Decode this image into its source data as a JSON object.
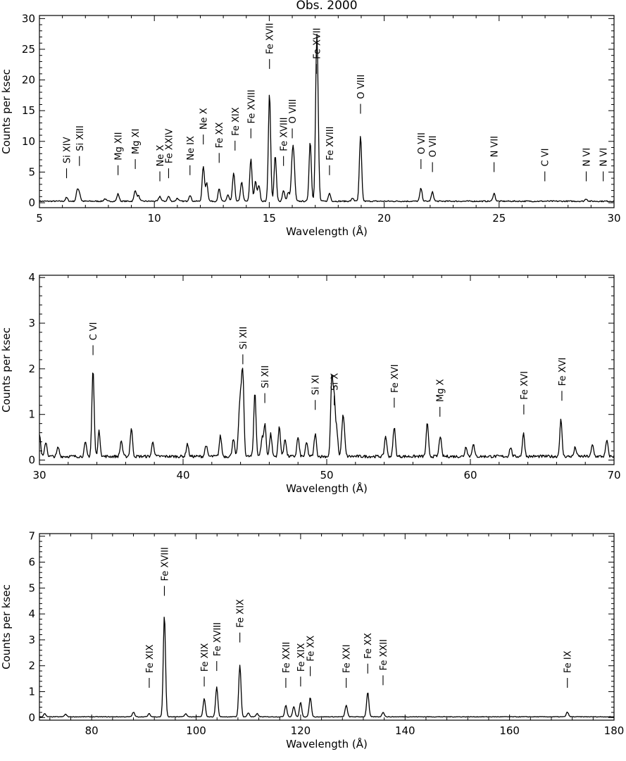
{
  "figure_title": "Obs. 2000",
  "chart_data": [
    {
      "type": "line",
      "xlabel": "Wavelength (Å)",
      "ylabel": "Counts per ksec",
      "xlim": [
        5,
        30
      ],
      "ylim": [
        -0.8,
        30.5
      ],
      "xticks": [
        5,
        10,
        15,
        20,
        25,
        30
      ],
      "yticks": [
        0,
        5,
        10,
        15,
        20,
        25,
        30
      ],
      "baseline": 0.25,
      "peaks": [
        {
          "x": 6.18,
          "y": 0.6
        },
        {
          "x": 6.65,
          "y": 1.8
        },
        {
          "x": 6.74,
          "y": 1.2
        },
        {
          "x": 7.85,
          "y": 0.4
        },
        {
          "x": 8.42,
          "y": 1.2
        },
        {
          "x": 9.17,
          "y": 1.8
        },
        {
          "x": 9.31,
          "y": 0.9
        },
        {
          "x": 10.24,
          "y": 0.8
        },
        {
          "x": 10.62,
          "y": 0.8
        },
        {
          "x": 11.0,
          "y": 0.5
        },
        {
          "x": 11.55,
          "y": 1.0
        },
        {
          "x": 12.13,
          "y": 5.7
        },
        {
          "x": 12.28,
          "y": 3.0
        },
        {
          "x": 12.82,
          "y": 2.0
        },
        {
          "x": 13.2,
          "y": 1.0
        },
        {
          "x": 13.45,
          "y": 4.6
        },
        {
          "x": 13.8,
          "y": 3.2
        },
        {
          "x": 14.2,
          "y": 6.9
        },
        {
          "x": 14.4,
          "y": 3.2
        },
        {
          "x": 14.55,
          "y": 2.6
        },
        {
          "x": 15.01,
          "y": 17.6
        },
        {
          "x": 15.26,
          "y": 7.4
        },
        {
          "x": 15.62,
          "y": 1.8
        },
        {
          "x": 15.83,
          "y": 1.5
        },
        {
          "x": 16.0,
          "y": 6.0
        },
        {
          "x": 16.07,
          "y": 5.7
        },
        {
          "x": 16.78,
          "y": 9.7
        },
        {
          "x": 17.05,
          "y": 17.0
        },
        {
          "x": 17.1,
          "y": 14.0
        },
        {
          "x": 17.62,
          "y": 1.3
        },
        {
          "x": 18.63,
          "y": 0.5
        },
        {
          "x": 18.97,
          "y": 10.6
        },
        {
          "x": 21.6,
          "y": 2.1
        },
        {
          "x": 22.1,
          "y": 1.5
        },
        {
          "x": 24.78,
          "y": 1.3
        },
        {
          "x": 28.79,
          "y": 0.4
        }
      ],
      "labels": [
        {
          "text": "Si XIV",
          "x": 6.18,
          "y": 4.0
        },
        {
          "text": "Si XIII",
          "x": 6.74,
          "y": 6.0
        },
        {
          "text": "Mg XII",
          "x": 8.42,
          "y": 4.5
        },
        {
          "text": "Mg XI",
          "x": 9.17,
          "y": 5.5
        },
        {
          "text": "Ne X",
          "x": 10.24,
          "y": 3.5
        },
        {
          "text": "Fe XXIV",
          "x": 10.62,
          "y": 4.0
        },
        {
          "text": "Ne IX",
          "x": 11.55,
          "y": 4.5
        },
        {
          "text": "Ne X",
          "x": 12.13,
          "y": 9.5
        },
        {
          "text": "Fe XX",
          "x": 12.82,
          "y": 6.5
        },
        {
          "text": "Fe XIX",
          "x": 13.51,
          "y": 8.5
        },
        {
          "text": "Fe XVIII",
          "x": 14.2,
          "y": 10.5
        },
        {
          "text": "Fe XVII",
          "x": 15.01,
          "y": 21.8
        },
        {
          "text": "Fe XVIII",
          "x": 15.62,
          "y": 6.0
        },
        {
          "text": "O VIII",
          "x": 16.0,
          "y": 10.5
        },
        {
          "text": "Fe XVII",
          "x": 17.05,
          "y": 21.0
        },
        {
          "text": "Fe XVIII",
          "x": 17.62,
          "y": 4.5
        },
        {
          "text": "O VIII",
          "x": 18.97,
          "y": 14.5
        },
        {
          "text": "O VII",
          "x": 21.6,
          "y": 5.5
        },
        {
          "text": "O VII",
          "x": 22.1,
          "y": 5.0
        },
        {
          "text": "N VII",
          "x": 24.78,
          "y": 5.0
        },
        {
          "text": "C VI",
          "x": 26.99,
          "y": 3.5
        },
        {
          "text": "N VI",
          "x": 28.79,
          "y": 3.5
        },
        {
          "text": "N VI",
          "x": 29.53,
          "y": 3.5
        }
      ]
    },
    {
      "type": "line",
      "xlabel": "Wavelength (Å)",
      "ylabel": "Counts per ksec",
      "xlim": [
        30,
        70
      ],
      "ylim": [
        -0.1,
        4.05
      ],
      "xticks": [
        30,
        40,
        50,
        60,
        70
      ],
      "yticks": [
        0,
        1,
        2,
        3,
        4
      ],
      "baseline": 0.08,
      "peaks": [
        {
          "x": 30.0,
          "y": 0.5
        },
        {
          "x": 30.45,
          "y": 0.32
        },
        {
          "x": 31.3,
          "y": 0.2
        },
        {
          "x": 33.2,
          "y": 0.3
        },
        {
          "x": 33.73,
          "y": 1.9
        },
        {
          "x": 34.15,
          "y": 0.55
        },
        {
          "x": 35.7,
          "y": 0.35
        },
        {
          "x": 36.4,
          "y": 0.62
        },
        {
          "x": 37.9,
          "y": 0.33
        },
        {
          "x": 40.3,
          "y": 0.28
        },
        {
          "x": 41.6,
          "y": 0.25
        },
        {
          "x": 42.6,
          "y": 0.45
        },
        {
          "x": 43.5,
          "y": 0.4
        },
        {
          "x": 43.9,
          "y": 0.7
        },
        {
          "x": 44.02,
          "y": 0.95
        },
        {
          "x": 44.16,
          "y": 1.72
        },
        {
          "x": 45.0,
          "y": 1.42
        },
        {
          "x": 45.5,
          "y": 0.4
        },
        {
          "x": 45.7,
          "y": 0.7
        },
        {
          "x": 46.1,
          "y": 0.5
        },
        {
          "x": 46.7,
          "y": 0.65
        },
        {
          "x": 47.1,
          "y": 0.4
        },
        {
          "x": 48.0,
          "y": 0.42
        },
        {
          "x": 48.6,
          "y": 0.3
        },
        {
          "x": 49.2,
          "y": 0.5
        },
        {
          "x": 50.35,
          "y": 1.68
        },
        {
          "x": 50.52,
          "y": 1.2
        },
        {
          "x": 50.7,
          "y": 0.55
        },
        {
          "x": 51.1,
          "y": 0.6
        },
        {
          "x": 51.2,
          "y": 0.5
        },
        {
          "x": 54.1,
          "y": 0.45
        },
        {
          "x": 54.7,
          "y": 0.65
        },
        {
          "x": 57.0,
          "y": 0.72
        },
        {
          "x": 57.9,
          "y": 0.45
        },
        {
          "x": 59.7,
          "y": 0.22
        },
        {
          "x": 60.2,
          "y": 0.28
        },
        {
          "x": 62.8,
          "y": 0.2
        },
        {
          "x": 63.7,
          "y": 0.5
        },
        {
          "x": 66.3,
          "y": 0.8
        },
        {
          "x": 67.3,
          "y": 0.2
        },
        {
          "x": 68.5,
          "y": 0.25
        },
        {
          "x": 69.5,
          "y": 0.35
        }
      ],
      "labels": [
        {
          "text": "C VI",
          "x": 33.73,
          "y": 2.3
        },
        {
          "text": "Si XII",
          "x": 44.16,
          "y": 2.1
        },
        {
          "text": "Si XII",
          "x": 45.69,
          "y": 1.25
        },
        {
          "text": "Si XI",
          "x": 49.2,
          "y": 1.1
        },
        {
          "text": "Si X",
          "x": 50.52,
          "y": 1.2
        },
        {
          "text": "Fe XVI",
          "x": 54.7,
          "y": 1.15
        },
        {
          "text": "Mg X",
          "x": 57.88,
          "y": 0.95
        },
        {
          "text": "Fe XVI",
          "x": 63.72,
          "y": 1.0
        },
        {
          "text": "Fe XVI",
          "x": 66.37,
          "y": 1.3
        }
      ]
    },
    {
      "type": "line",
      "xlabel": "Wavelength (Å)",
      "ylabel": "Counts per ksec",
      "xlim": [
        70,
        180
      ],
      "ylim": [
        -0.1,
        7.1
      ],
      "xticks": [
        80,
        100,
        120,
        140,
        160,
        180
      ],
      "yticks": [
        0,
        1,
        2,
        3,
        4,
        5,
        6,
        7
      ],
      "baseline": 0.03,
      "peaks": [
        {
          "x": 71.0,
          "y": 0.12
        },
        {
          "x": 75.0,
          "y": 0.1
        },
        {
          "x": 88.0,
          "y": 0.18
        },
        {
          "x": 91.0,
          "y": 0.12
        },
        {
          "x": 93.92,
          "y": 3.92
        },
        {
          "x": 98.0,
          "y": 0.12
        },
        {
          "x": 101.55,
          "y": 0.7
        },
        {
          "x": 103.94,
          "y": 1.15
        },
        {
          "x": 108.37,
          "y": 2.0
        },
        {
          "x": 110.0,
          "y": 0.15
        },
        {
          "x": 111.7,
          "y": 0.12
        },
        {
          "x": 117.17,
          "y": 0.45
        },
        {
          "x": 118.7,
          "y": 0.4
        },
        {
          "x": 120.0,
          "y": 0.55
        },
        {
          "x": 121.85,
          "y": 0.75
        },
        {
          "x": 128.73,
          "y": 0.45
        },
        {
          "x": 132.85,
          "y": 0.95
        },
        {
          "x": 135.8,
          "y": 0.18
        },
        {
          "x": 171.07,
          "y": 0.18
        }
      ],
      "labels": [
        {
          "text": "Fe XIX",
          "x": 91.02,
          "y": 1.15
        },
        {
          "text": "Fe XVIII",
          "x": 93.92,
          "y": 4.7
        },
        {
          "text": "Fe XIX",
          "x": 101.55,
          "y": 1.2
        },
        {
          "text": "Fe XVIII",
          "x": 103.94,
          "y": 1.8
        },
        {
          "text": "Fe XIX",
          "x": 108.37,
          "y": 2.9
        },
        {
          "text": "Fe XXII",
          "x": 117.17,
          "y": 1.15
        },
        {
          "text": "Fe XIX",
          "x": 120.0,
          "y": 1.2
        },
        {
          "text": "Fe XX",
          "x": 121.85,
          "y": 1.6
        },
        {
          "text": "Fe XXI",
          "x": 128.73,
          "y": 1.15
        },
        {
          "text": "Fe XX",
          "x": 132.85,
          "y": 1.7
        },
        {
          "text": "Fe XXII",
          "x": 135.78,
          "y": 1.25
        },
        {
          "text": "Fe IX",
          "x": 171.07,
          "y": 1.15
        }
      ]
    }
  ]
}
